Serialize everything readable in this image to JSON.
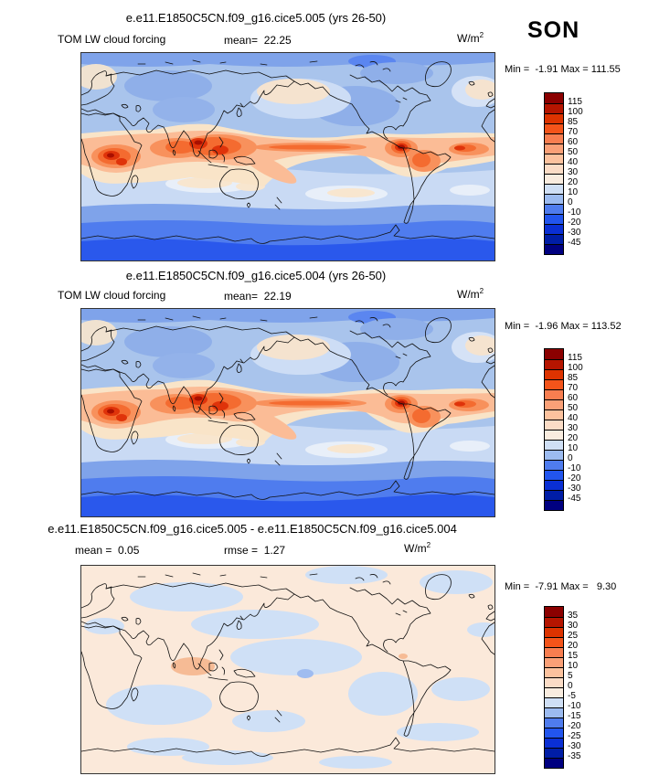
{
  "season": "SON",
  "panels": [
    {
      "title": "e.e11.E1850C5CN.f09_g16.cice5.005 (yrs 26-50)",
      "variable": "TOM LW cloud forcing",
      "mean_label": "mean=",
      "mean_value": "22.25",
      "units_base": "W/m",
      "units_exp": "2",
      "minmax": "Min =  -1.91 Max = 111.55",
      "colorbar": {
        "labels": [
          "115",
          "100",
          "85",
          "70",
          "60",
          "50",
          "40",
          "30",
          "20",
          "10",
          "0",
          "-10",
          "-20",
          "-30",
          "-45"
        ],
        "colors": [
          "#8b0000",
          "#b51500",
          "#dd3300",
          "#f4541a",
          "#f87e50",
          "#faa077",
          "#fcc29e",
          "#fbdcc6",
          "#f9ecdf",
          "#cfdff5",
          "#9cbbf0",
          "#4f7cee",
          "#2255ee",
          "#0a2fd4",
          "#001da6",
          "#000080"
        ]
      }
    },
    {
      "title": "e.e11.E1850C5CN.f09_g16.cice5.004 (yrs 26-50)",
      "variable": "TOM LW cloud forcing",
      "mean_label": "mean=",
      "mean_value": "22.19",
      "units_base": "W/m",
      "units_exp": "2",
      "minmax": "Min =  -1.96 Max = 113.52",
      "colorbar": {
        "labels": [
          "115",
          "100",
          "85",
          "70",
          "60",
          "50",
          "40",
          "30",
          "20",
          "10",
          "0",
          "-10",
          "-20",
          "-30",
          "-45"
        ],
        "colors": [
          "#8b0000",
          "#b51500",
          "#dd3300",
          "#f4541a",
          "#f87e50",
          "#faa077",
          "#fcc29e",
          "#fbdcc6",
          "#f9ecdf",
          "#cfdff5",
          "#9cbbf0",
          "#4f7cee",
          "#2255ee",
          "#0a2fd4",
          "#001da6",
          "#000080"
        ]
      }
    },
    {
      "title": "e.e11.E1850C5CN.f09_g16.cice5.005 - e.e11.E1850C5CN.f09_g16.cice5.004",
      "mean_label": "mean =",
      "mean_value": "0.05",
      "rmse_label": "rmse =",
      "rmse_value": "1.27",
      "units_base": "W/m",
      "units_exp": "2",
      "minmax": "Min =  -7.91 Max =   9.30",
      "colorbar": {
        "labels": [
          "35",
          "30",
          "25",
          "20",
          "15",
          "10",
          "5",
          "0",
          "-5",
          "-10",
          "-15",
          "-20",
          "-25",
          "-30",
          "-35"
        ],
        "colors": [
          "#8b0000",
          "#b51500",
          "#dd3300",
          "#f4541a",
          "#f87e50",
          "#faa077",
          "#fcc29e",
          "#fbdcc6",
          "#f9ecdf",
          "#cfdff5",
          "#9cbbf0",
          "#4f7cee",
          "#2255ee",
          "#0a2fd4",
          "#001da6",
          "#000080"
        ]
      }
    }
  ],
  "chart_data": [
    {
      "type": "heatmap",
      "subtype": "filled-contour global map (cylindrical, Pacific-centered, 0E at left edge)",
      "title": "e.e11.E1850C5CN.f09_g16.cice5.005 (yrs 26-50)",
      "variable": "TOM LW cloud forcing",
      "season": "SON",
      "units": "W/m^2",
      "mean": 22.25,
      "min": -1.91,
      "max": 111.55,
      "contour_levels": [
        -45,
        -30,
        -20,
        -10,
        0,
        10,
        20,
        30,
        40,
        50,
        60,
        70,
        85,
        100,
        115
      ],
      "palette_top_to_bottom": [
        "#8b0000",
        "#b51500",
        "#dd3300",
        "#f4541a",
        "#f87e50",
        "#faa077",
        "#fcc29e",
        "#fbdcc6",
        "#f9ecdf",
        "#cfdff5",
        "#9cbbf0",
        "#4f7cee",
        "#2255ee",
        "#0a2fd4",
        "#001da6",
        "#000080"
      ],
      "legend_position": "right",
      "grid": false,
      "notable_features": "warm orange/red band along tropics (central Africa, Indian Ocean, Indonesia, ITCZ across Pacific to Panama/Colombia, Amazon, tropical Atlantic); light blue mid-latitudes; strong blue Southern Ocean and Antarctica; medium blue Arctic"
    },
    {
      "type": "heatmap",
      "subtype": "filled-contour global map (cylindrical, Pacific-centered, 0E at left edge)",
      "title": "e.e11.E1850C5CN.f09_g16.cice5.004 (yrs 26-50)",
      "variable": "TOM LW cloud forcing",
      "season": "SON",
      "units": "W/m^2",
      "mean": 22.19,
      "min": -1.96,
      "max": 113.52,
      "contour_levels": [
        -45,
        -30,
        -20,
        -10,
        0,
        10,
        20,
        30,
        40,
        50,
        60,
        70,
        85,
        100,
        115
      ],
      "palette_top_to_bottom": [
        "#8b0000",
        "#b51500",
        "#dd3300",
        "#f4541a",
        "#f87e50",
        "#faa077",
        "#fcc29e",
        "#fbdcc6",
        "#f9ecdf",
        "#cfdff5",
        "#9cbbf0",
        "#4f7cee",
        "#2255ee",
        "#0a2fd4",
        "#001da6",
        "#000080"
      ],
      "legend_position": "right",
      "grid": false,
      "notable_features": "virtually identical pattern to case .005"
    },
    {
      "type": "heatmap",
      "subtype": "difference map (case .005 minus case .004)",
      "title": "e.e11.E1850C5CN.f09_g16.cice5.005 - e.e11.E1850C5CN.f09_g16.cice5.004",
      "season": "SON",
      "units": "W/m^2",
      "mean": 0.05,
      "rmse": 1.27,
      "min": -7.91,
      "max": 9.3,
      "contour_levels": [
        -35,
        -30,
        -25,
        -20,
        -15,
        -10,
        -5,
        0,
        5,
        10,
        15,
        20,
        25,
        30,
        35
      ],
      "palette_top_to_bottom": [
        "#8b0000",
        "#b51500",
        "#dd3300",
        "#f4541a",
        "#f87e50",
        "#faa077",
        "#fcc29e",
        "#fbdcc6",
        "#f9ecdf",
        "#cfdff5",
        "#9cbbf0",
        "#4f7cee",
        "#2255ee",
        "#0a2fd4",
        "#001da6",
        "#000080"
      ],
      "legend_position": "right",
      "grid": false,
      "notable_features": "mostly near-zero pale cream field with scattered pale blue patches; small warm (salmon) anomaly in southern Indian Ocean; tiny blue anomaly in central equatorial Pacific"
    }
  ],
  "colors": {
    "map_base_blue": "#a9c4ec",
    "diff_base_cream": "#fbe9da",
    "coastline": "#111111"
  }
}
